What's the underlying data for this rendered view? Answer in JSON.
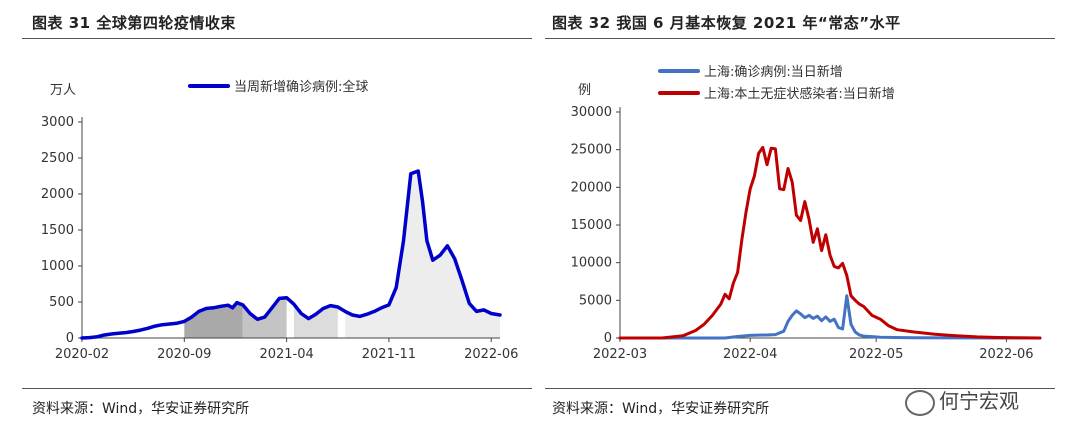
{
  "left_panel": {
    "title": "图表 31  全球第四轮疫情收束",
    "source": "资料来源：Wind，华安证券研究所"
  },
  "right_panel": {
    "title": "图表 32  我国 6 月基本恢复 2021 年“常态”水平",
    "source": "资料来源：Wind，华安证券研究所"
  },
  "watermark": "何宁宏观",
  "chart_data": [
    {
      "type": "area",
      "title": "图表 31  全球第四轮疫情收束",
      "ylabel": "万人",
      "ylim": [
        0,
        3000
      ],
      "yticks": [
        "0",
        "500",
        "1000",
        "1500",
        "2000",
        "2500",
        "3000"
      ],
      "ytick_values": [
        0,
        500,
        1000,
        1500,
        2000,
        2500,
        3000
      ],
      "xticks": [
        "2020-02",
        "2020-09",
        "2021-04",
        "2021-11",
        "2022-06"
      ],
      "xtick_positions": [
        0,
        7,
        14,
        21,
        28
      ],
      "xlim": [
        0,
        28.6
      ],
      "legend": "当周新增确诊病例:全球",
      "legend_position": "top",
      "grid": false,
      "line_color": "#0000CC",
      "shaded_bands": [
        {
          "from": 7,
          "to": 11,
          "color": "#a9a9a9"
        },
        {
          "from": 11,
          "to": 14.4,
          "color": "#c4c4c4"
        },
        {
          "from": 14.4,
          "to": 17.7,
          "color": "#dcdcdc"
        },
        {
          "from": 17.7,
          "to": 28.6,
          "color": "#ededed"
        }
      ],
      "series": [
        {
          "name": "当周新增确诊病例:全球",
          "x": [
            0,
            0.5,
            1,
            1.5,
            2,
            2.5,
            3,
            3.5,
            4,
            4.5,
            5,
            5.5,
            6,
            6.5,
            7,
            7.5,
            8,
            8.5,
            9,
            9.5,
            10,
            10.3,
            10.6,
            11,
            11.5,
            12,
            12.5,
            13,
            13.5,
            14,
            14.5,
            15,
            15.5,
            16,
            16.5,
            17,
            17.5,
            18,
            18.5,
            19,
            19.5,
            20,
            20.5,
            21,
            21.5,
            22,
            22.5,
            23,
            23.3,
            23.6,
            24,
            24.5,
            25,
            25.5,
            26,
            26.5,
            27,
            27.5,
            28,
            28.6
          ],
          "values": [
            0,
            5,
            15,
            40,
            55,
            65,
            75,
            90,
            110,
            135,
            165,
            185,
            195,
            205,
            230,
            290,
            370,
            410,
            420,
            440,
            455,
            420,
            490,
            460,
            340,
            260,
            290,
            420,
            550,
            560,
            470,
            340,
            270,
            330,
            410,
            450,
            430,
            370,
            320,
            300,
            330,
            370,
            420,
            460,
            700,
            1350,
            2280,
            2320,
            1900,
            1350,
            1080,
            1150,
            1280,
            1100,
            800,
            480,
            370,
            390,
            340,
            320
          ]
        }
      ]
    },
    {
      "type": "line",
      "title": "图表 32  我国 6 月基本恢复 2021 年“常态”水平",
      "ylabel": "例",
      "ylim": [
        0,
        30000
      ],
      "yticks": [
        "0",
        "5000",
        "10000",
        "15000",
        "20000",
        "25000",
        "30000"
      ],
      "ytick_values": [
        0,
        5000,
        10000,
        15000,
        20000,
        25000,
        30000
      ],
      "xticks": [
        "2022-03",
        "2022-04",
        "2022-05",
        "2022-06"
      ],
      "xtick_positions": [
        0,
        31,
        61,
        92
      ],
      "xlim": [
        0,
        100
      ],
      "legend_position": "top",
      "grid": false,
      "series": [
        {
          "name": "上海:确诊病例:当日新增",
          "color": "#4472C4",
          "x": [
            0,
            25,
            28,
            31,
            33,
            35,
            37,
            39,
            40,
            41,
            42,
            43,
            44,
            45,
            46,
            47,
            48,
            49,
            50,
            51,
            52,
            53,
            54,
            55,
            56,
            57,
            58,
            60,
            62,
            65,
            70,
            80,
            90,
            100
          ],
          "values": [
            0,
            0,
            200,
            350,
            380,
            400,
            450,
            900,
            2200,
            3000,
            3600,
            3200,
            2700,
            3000,
            2600,
            2900,
            2300,
            2800,
            2200,
            2500,
            1400,
            1200,
            5600,
            1800,
            800,
            400,
            250,
            180,
            100,
            60,
            30,
            10,
            0,
            0
          ]
        },
        {
          "name": "上海:本土无症状感染者:当日新增",
          "color": "#C00000",
          "x": [
            0,
            10,
            15,
            18,
            20,
            22,
            24,
            25,
            26,
            27,
            28,
            29,
            30,
            31,
            32,
            33,
            34,
            35,
            36,
            37,
            38,
            39,
            40,
            41,
            42,
            43,
            44,
            45,
            46,
            47,
            48,
            49,
            50,
            51,
            52,
            53,
            54,
            55,
            56,
            57,
            58,
            60,
            62,
            64,
            66,
            70,
            75,
            80,
            85,
            90,
            95,
            100
          ],
          "values": [
            0,
            0,
            300,
            1000,
            1800,
            3000,
            4500,
            5800,
            5200,
            7300,
            8700,
            13000,
            16700,
            19800,
            21500,
            24500,
            25300,
            23000,
            25200,
            25100,
            19800,
            19700,
            22500,
            20700,
            16300,
            15600,
            18100,
            15800,
            12700,
            14500,
            11600,
            13700,
            11000,
            9500,
            9300,
            9900,
            8300,
            5600,
            5000,
            4500,
            4200,
            3000,
            2500,
            1600,
            1100,
            800,
            500,
            300,
            150,
            60,
            20,
            0
          ]
        }
      ]
    }
  ]
}
